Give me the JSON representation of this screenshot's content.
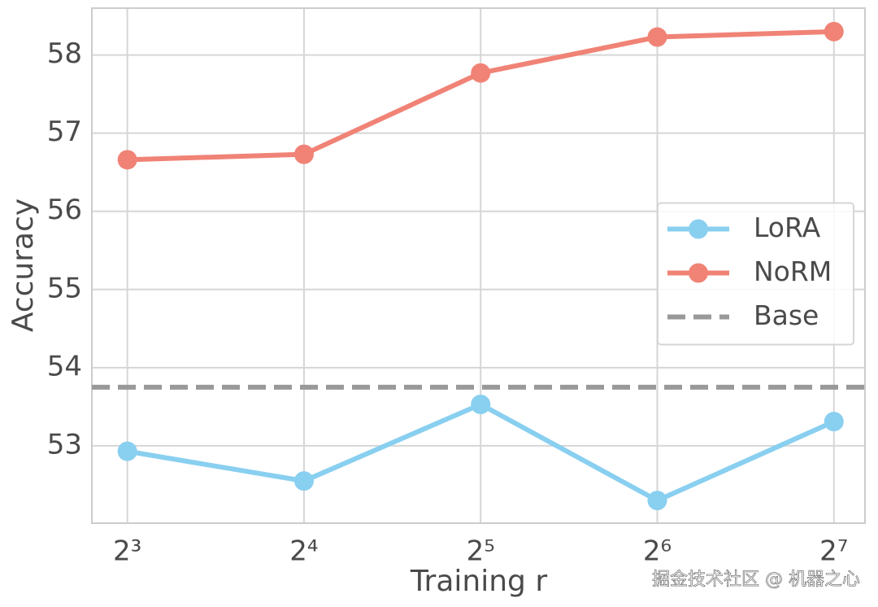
{
  "chart_data": {
    "type": "line",
    "x_label": "Training r",
    "y_label": "Accuracy",
    "x": [
      8,
      16,
      32,
      64,
      128
    ],
    "x_scale": "log2",
    "xlim": [
      6.96,
      144.6
    ],
    "xticks": [
      {
        "value": 8,
        "label": "2³"
      },
      {
        "value": 16,
        "label": "2⁴"
      },
      {
        "value": 32,
        "label": "2⁵"
      },
      {
        "value": 64,
        "label": "2⁶"
      },
      {
        "value": 128,
        "label": "2⁷"
      }
    ],
    "ylim": [
      52.01,
      58.6
    ],
    "yticks": [
      53,
      54,
      55,
      56,
      57,
      58
    ],
    "grid": true,
    "legend": "right",
    "series": [
      {
        "name": "LoRA",
        "color": "#89cff0",
        "values": [
          52.93,
          52.55,
          53.53,
          52.3,
          53.31
        ]
      },
      {
        "name": "NoRM",
        "color": "#f08376",
        "values": [
          56.66,
          56.73,
          57.77,
          58.23,
          58.3
        ]
      }
    ],
    "baseline": {
      "name": "Base",
      "color": "#999999",
      "value": 53.75
    },
    "watermark": "掘金技术社区 @ 机器之心"
  }
}
